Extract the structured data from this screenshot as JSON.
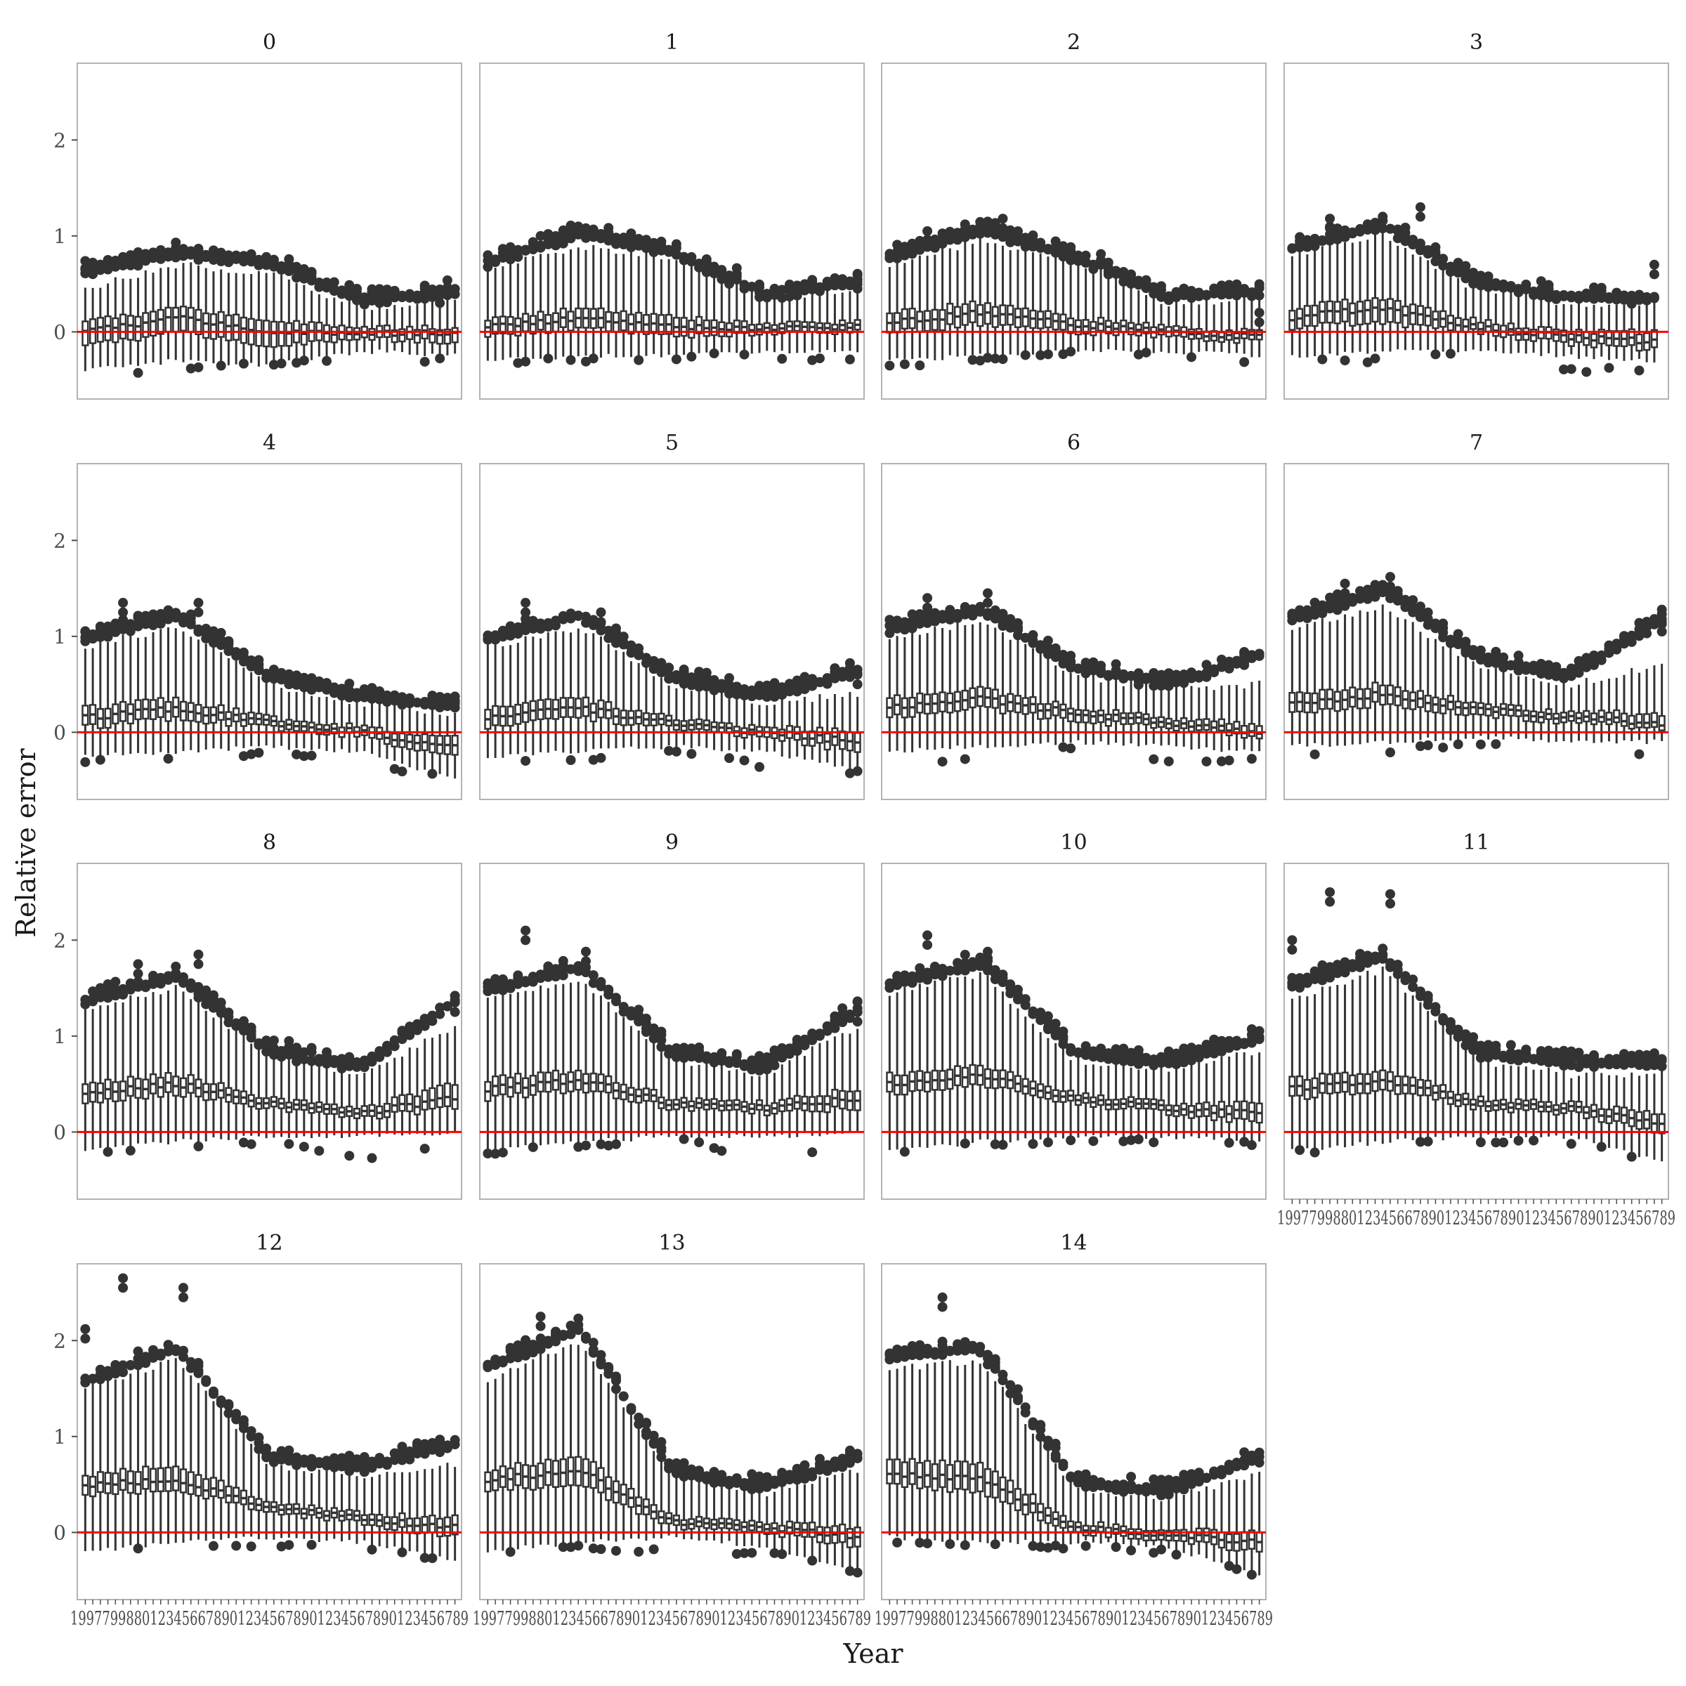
{
  "chart_data": {
    "type": "boxplot",
    "layout": "facet_wrap",
    "xlabel": "Year",
    "ylabel": "Relative error",
    "yticks": [
      0,
      1,
      2
    ],
    "ylim": [
      -0.7,
      2.8
    ],
    "reference_line": {
      "y": 0,
      "color": "#ff0000"
    },
    "panel_border_color": "#b3b3b3",
    "box_color": "#333333",
    "x_tick_label_text": "19977998801234566789012345678901234567890123456789",
    "panels": [
      {
        "label": "0",
        "n": 50,
        "med": [
          0.0,
          0.15,
          0.0,
          -0.02,
          0.0
        ],
        "q1": [
          -0.15,
          0.0,
          -0.15,
          -0.07,
          -0.1
        ],
        "q3": [
          0.1,
          0.25,
          0.12,
          0.04,
          0.05
        ],
        "wlo": [
          -0.4,
          -0.3,
          -0.35,
          -0.2,
          -0.25
        ],
        "whi": [
          0.45,
          0.7,
          0.6,
          0.25,
          0.35
        ],
        "olo": [
          -0.5,
          -0.4,
          -0.28,
          -0.28,
          -0.3
        ],
        "ohi": [
          0.6,
          0.8,
          0.7,
          0.3,
          0.4
        ],
        "spikes": [
          [
            3,
            0.75
          ],
          [
            15,
            0.85
          ],
          [
            17,
            0.85
          ],
          [
            47,
            0.4
          ]
        ]
      },
      {
        "label": "1",
        "n": 50,
        "med": [
          0.05,
          0.15,
          0.05,
          0.03,
          0.05
        ],
        "q1": [
          -0.05,
          0.05,
          -0.05,
          -0.02,
          0.0
        ],
        "q3": [
          0.12,
          0.25,
          0.15,
          0.08,
          0.1
        ],
        "wlo": [
          -0.3,
          -0.25,
          -0.25,
          -0.2,
          -0.2
        ],
        "whi": [
          0.65,
          0.9,
          0.75,
          0.35,
          0.45
        ],
        "olo": [
          -0.3,
          -0.3,
          -0.2,
          -0.25,
          -0.3
        ],
        "ohi": [
          0.7,
          1.0,
          0.8,
          0.35,
          0.5
        ],
        "spikes": [
          [
            7,
            1.0
          ],
          [
            11,
            1.1
          ],
          [
            13,
            1.08
          ],
          [
            49,
            0.55
          ]
        ]
      },
      {
        "label": "2",
        "n": 50,
        "med": [
          0.1,
          0.2,
          0.08,
          0.0,
          -0.05
        ],
        "q1": [
          0.0,
          0.08,
          0.0,
          -0.05,
          -0.1
        ],
        "q3": [
          0.2,
          0.3,
          0.15,
          0.05,
          0.0
        ],
        "wlo": [
          -0.3,
          -0.25,
          -0.2,
          -0.2,
          -0.25
        ],
        "whi": [
          0.7,
          0.95,
          0.75,
          0.3,
          0.35
        ],
        "olo": [
          -0.35,
          -0.3,
          -0.2,
          -0.25,
          -0.3
        ],
        "ohi": [
          0.75,
          1.05,
          0.75,
          0.35,
          0.4
        ],
        "spikes": [
          [
            5,
            1.05
          ],
          [
            13,
            1.15
          ],
          [
            15,
            1.18
          ],
          [
            49,
            0.2
          ]
        ]
      },
      {
        "label": "3",
        "n": 49,
        "med": [
          0.15,
          0.25,
          0.05,
          -0.05,
          -0.1
        ],
        "q1": [
          0.05,
          0.1,
          0.0,
          -0.12,
          -0.18
        ],
        "q3": [
          0.25,
          0.35,
          0.12,
          0.0,
          0.0
        ],
        "wlo": [
          -0.25,
          -0.2,
          -0.2,
          -0.25,
          -0.3
        ],
        "whi": [
          0.8,
          1.0,
          0.45,
          0.3,
          0.3
        ],
        "olo": [
          -0.3,
          -0.3,
          -0.2,
          -0.4,
          -0.4
        ],
        "ohi": [
          0.85,
          1.1,
          0.5,
          0.35,
          0.3
        ],
        "spikes": [
          [
            5,
            1.18
          ],
          [
            17,
            1.3
          ],
          [
            48,
            0.7
          ]
        ]
      },
      {
        "label": "4",
        "n": 50,
        "med": [
          0.15,
          0.25,
          0.1,
          0.0,
          -0.15
        ],
        "q1": [
          0.05,
          0.15,
          0.05,
          -0.05,
          -0.25
        ],
        "q3": [
          0.25,
          0.35,
          0.15,
          0.05,
          -0.05
        ],
        "wlo": [
          -0.25,
          -0.2,
          -0.15,
          -0.2,
          -0.5
        ],
        "whi": [
          0.9,
          1.1,
          0.5,
          0.3,
          0.2
        ],
        "olo": [
          -0.3,
          -0.3,
          -0.2,
          -0.35,
          -0.45
        ],
        "ohi": [
          0.95,
          1.2,
          0.55,
          0.35,
          0.25
        ],
        "spikes": [
          [
            5,
            1.35
          ],
          [
            15,
            1.35
          ]
        ]
      },
      {
        "label": "5",
        "n": 50,
        "med": [
          0.15,
          0.25,
          0.1,
          0.0,
          -0.1
        ],
        "q1": [
          0.05,
          0.15,
          0.05,
          -0.05,
          -0.2
        ],
        "q3": [
          0.25,
          0.35,
          0.15,
          0.05,
          0.0
        ],
        "wlo": [
          -0.25,
          -0.2,
          -0.15,
          -0.2,
          -0.4
        ],
        "whi": [
          0.9,
          1.1,
          0.5,
          0.3,
          0.4
        ],
        "olo": [
          -0.3,
          -0.3,
          -0.2,
          -0.35,
          -0.4
        ],
        "ohi": [
          0.95,
          1.2,
          0.55,
          0.35,
          0.6
        ],
        "spikes": [
          [
            5,
            1.35
          ],
          [
            15,
            1.25
          ],
          [
            49,
            0.6
          ]
        ]
      },
      {
        "label": "6",
        "n": 50,
        "med": [
          0.25,
          0.35,
          0.2,
          0.1,
          0.0
        ],
        "q1": [
          0.15,
          0.25,
          0.12,
          0.05,
          -0.05
        ],
        "q3": [
          0.35,
          0.45,
          0.25,
          0.15,
          0.08
        ],
        "wlo": [
          -0.2,
          -0.15,
          -0.1,
          -0.15,
          -0.2
        ],
        "whi": [
          1.0,
          1.15,
          0.6,
          0.45,
          0.5
        ],
        "olo": [
          -0.3,
          -0.3,
          -0.15,
          -0.3,
          -0.3
        ],
        "ohi": [
          1.05,
          1.25,
          0.65,
          0.45,
          0.8
        ],
        "spikes": [
          [
            5,
            1.4
          ],
          [
            13,
            1.45
          ],
          [
            47,
            0.8
          ]
        ]
      },
      {
        "label": "7",
        "n": 50,
        "med": [
          0.3,
          0.4,
          0.25,
          0.15,
          0.1
        ],
        "q1": [
          0.2,
          0.3,
          0.18,
          0.1,
          0.05
        ],
        "q3": [
          0.4,
          0.5,
          0.3,
          0.2,
          0.2
        ],
        "wlo": [
          -0.15,
          -0.1,
          -0.05,
          -0.1,
          -0.1
        ],
        "whi": [
          1.1,
          1.3,
          0.7,
          0.5,
          0.7
        ],
        "olo": [
          -0.25,
          -0.2,
          -0.1,
          -0.3,
          -0.2
        ],
        "ohi": [
          1.15,
          1.45,
          0.75,
          0.55,
          1.15
        ],
        "spikes": [
          [
            7,
            1.55
          ],
          [
            13,
            1.62
          ],
          [
            49,
            1.15
          ]
        ]
      },
      {
        "label": "8",
        "n": 50,
        "med": [
          0.4,
          0.5,
          0.3,
          0.2,
          0.35
        ],
        "q1": [
          0.3,
          0.4,
          0.25,
          0.15,
          0.25
        ],
        "q3": [
          0.5,
          0.6,
          0.35,
          0.25,
          0.5
        ],
        "wlo": [
          -0.2,
          -0.1,
          -0.05,
          -0.05,
          0.0
        ],
        "whi": [
          1.3,
          1.5,
          0.8,
          0.6,
          1.1
        ],
        "olo": [
          -0.2,
          -0.15,
          -0.1,
          -0.3,
          -0.1
        ],
        "ohi": [
          1.35,
          1.6,
          0.8,
          0.65,
          1.35
        ],
        "spikes": [
          [
            7,
            1.75
          ],
          [
            15,
            1.85
          ],
          [
            49,
            1.35
          ]
        ]
      },
      {
        "label": "9",
        "n": 50,
        "med": [
          0.45,
          0.55,
          0.3,
          0.25,
          0.35
        ],
        "q1": [
          0.35,
          0.45,
          0.25,
          0.2,
          0.25
        ],
        "q3": [
          0.55,
          0.65,
          0.35,
          0.3,
          0.45
        ],
        "wlo": [
          -0.2,
          -0.1,
          -0.05,
          -0.05,
          0.0
        ],
        "whi": [
          1.4,
          1.6,
          0.75,
          0.6,
          1.1
        ],
        "olo": [
          -0.2,
          -0.15,
          -0.05,
          -0.28,
          -0.1
        ],
        "ohi": [
          1.45,
          1.7,
          0.8,
          0.65,
          1.25
        ],
        "spikes": [
          [
            5,
            2.1
          ],
          [
            13,
            1.88
          ],
          [
            49,
            1.25
          ]
        ]
      },
      {
        "label": "10",
        "n": 50,
        "med": [
          0.5,
          0.6,
          0.35,
          0.25,
          0.2
        ],
        "q1": [
          0.4,
          0.5,
          0.3,
          0.2,
          0.1
        ],
        "q3": [
          0.6,
          0.7,
          0.4,
          0.3,
          0.3
        ],
        "wlo": [
          -0.2,
          -0.1,
          -0.05,
          -0.05,
          -0.1
        ],
        "whi": [
          1.45,
          1.65,
          0.75,
          0.65,
          0.85
        ],
        "olo": [
          -0.15,
          -0.1,
          -0.1,
          -0.1,
          -0.1
        ],
        "ohi": [
          1.5,
          1.75,
          0.8,
          0.7,
          0.95
        ],
        "spikes": [
          [
            5,
            2.05
          ],
          [
            13,
            1.88
          ]
        ]
      },
      {
        "label": "11",
        "n": 50,
        "med": [
          0.45,
          0.55,
          0.3,
          0.25,
          0.1
        ],
        "q1": [
          0.35,
          0.45,
          0.25,
          0.2,
          0.0
        ],
        "q3": [
          0.55,
          0.65,
          0.35,
          0.3,
          0.2
        ],
        "wlo": [
          -0.2,
          -0.1,
          -0.05,
          -0.05,
          -0.3
        ],
        "whi": [
          1.4,
          1.7,
          0.75,
          0.6,
          0.6
        ],
        "olo": [
          -0.2,
          -0.1,
          -0.1,
          -0.1,
          -0.1
        ],
        "ohi": [
          1.5,
          1.8,
          0.8,
          0.7,
          0.7
        ],
        "spikes": [
          [
            0,
            2.0
          ],
          [
            5,
            2.5
          ],
          [
            13,
            2.48
          ]
        ]
      },
      {
        "label": "12",
        "n": 50,
        "med": [
          0.5,
          0.55,
          0.25,
          0.15,
          0.05
        ],
        "q1": [
          0.4,
          0.45,
          0.2,
          0.1,
          -0.05
        ],
        "q3": [
          0.6,
          0.7,
          0.3,
          0.2,
          0.15
        ],
        "wlo": [
          -0.2,
          -0.1,
          -0.05,
          -0.1,
          -0.3
        ],
        "whi": [
          1.5,
          1.8,
          0.7,
          0.6,
          0.7
        ],
        "olo": [
          -0.2,
          -0.1,
          -0.15,
          -0.15,
          -0.2
        ],
        "ohi": [
          1.55,
          1.9,
          0.75,
          0.65,
          0.9
        ],
        "spikes": [
          [
            5,
            2.65
          ],
          [
            13,
            2.55
          ],
          [
            0,
            2.12
          ]
        ]
      },
      {
        "label": "13",
        "n": 50,
        "med": [
          0.55,
          0.65,
          0.1,
          0.05,
          -0.05
        ],
        "q1": [
          0.45,
          0.5,
          0.05,
          0.0,
          -0.15
        ],
        "q3": [
          0.65,
          0.8,
          0.15,
          0.1,
          0.05
        ],
        "wlo": [
          -0.2,
          -0.1,
          -0.05,
          -0.15,
          -0.4
        ],
        "whi": [
          1.6,
          2.0,
          0.6,
          0.4,
          0.65
        ],
        "olo": [
          -0.15,
          -0.15,
          -0.2,
          -0.2,
          -0.3
        ],
        "ohi": [
          1.7,
          2.1,
          0.6,
          0.45,
          0.75
        ],
        "spikes": [
          [
            7,
            2.25
          ],
          [
            15,
            1.85
          ]
        ]
      },
      {
        "label": "14",
        "n": 50,
        "med": [
          0.6,
          0.55,
          0.05,
          -0.02,
          -0.1
        ],
        "q1": [
          0.5,
          0.4,
          0.0,
          -0.07,
          -0.2
        ],
        "q3": [
          0.75,
          0.7,
          0.1,
          0.03,
          0.0
        ],
        "wlo": [
          -0.05,
          -0.1,
          -0.1,
          -0.15,
          -0.45
        ],
        "whi": [
          1.7,
          1.8,
          0.45,
          0.35,
          0.6
        ],
        "olo": [
          -0.1,
          -0.1,
          -0.15,
          -0.2,
          -0.3
        ],
        "ohi": [
          1.8,
          1.9,
          0.5,
          0.4,
          0.75
        ],
        "spikes": [
          [
            7,
            2.45
          ],
          [
            13,
            1.85
          ]
        ]
      }
    ]
  }
}
